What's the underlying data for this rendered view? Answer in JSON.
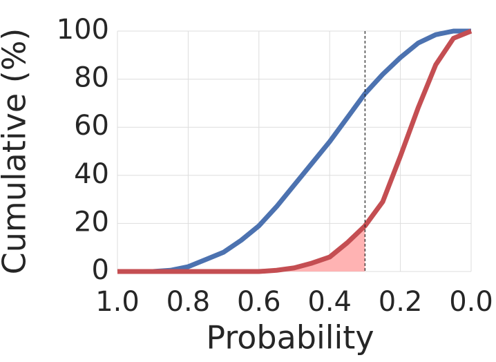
{
  "chart_data": {
    "type": "line",
    "xlabel": "Probability",
    "ylabel": "Cumulative (%)",
    "x": [
      1.0,
      0.95,
      0.9,
      0.85,
      0.8,
      0.75,
      0.7,
      0.65,
      0.6,
      0.55,
      0.5,
      0.45,
      0.4,
      0.35,
      0.3,
      0.25,
      0.2,
      0.15,
      0.1,
      0.05,
      0.0
    ],
    "series": [
      {
        "color": "#4c72b0",
        "values": [
          0,
          0,
          0,
          0.5,
          2,
          5,
          8,
          13,
          19,
          27,
          36,
          45,
          54,
          64,
          74,
          82,
          89,
          95,
          98.5,
          100,
          100
        ]
      },
      {
        "color": "#c44e52",
        "values": [
          0,
          0,
          0,
          0,
          0,
          0,
          0,
          0,
          0,
          0.5,
          1.5,
          3.5,
          6,
          12,
          19,
          29,
          48,
          68,
          86,
          97,
          100
        ]
      }
    ],
    "xlim": [
      1.0,
      0.0
    ],
    "xticks": [
      {
        "value": 1.0,
        "label": "1.0"
      },
      0.8,
      0.6,
      0.4,
      0.2,
      {
        "value": 0.0,
        "label": "0.0"
      }
    ],
    "ylim": [
      0,
      100
    ],
    "yticks": [
      0,
      20,
      40,
      60,
      80,
      100
    ],
    "grid": true,
    "vline": 0.3,
    "shade_color": "#ffb3b3"
  }
}
